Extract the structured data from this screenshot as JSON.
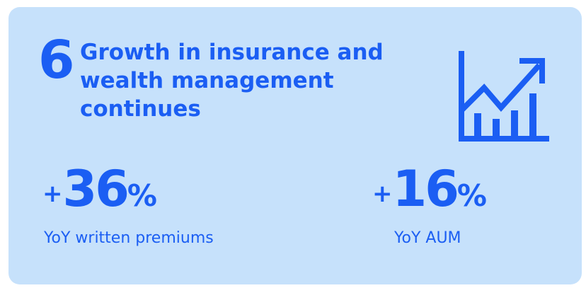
{
  "number": "6",
  "title_lines": [
    "Growth in insurance and",
    "wealth management",
    "continues"
  ],
  "stats": [
    {
      "sign": "+",
      "value": 36,
      "unit": "%",
      "label": "YoY written premiums"
    },
    {
      "sign": "+",
      "value": 16,
      "unit": "%",
      "label": "YoY AUM"
    }
  ]
}
